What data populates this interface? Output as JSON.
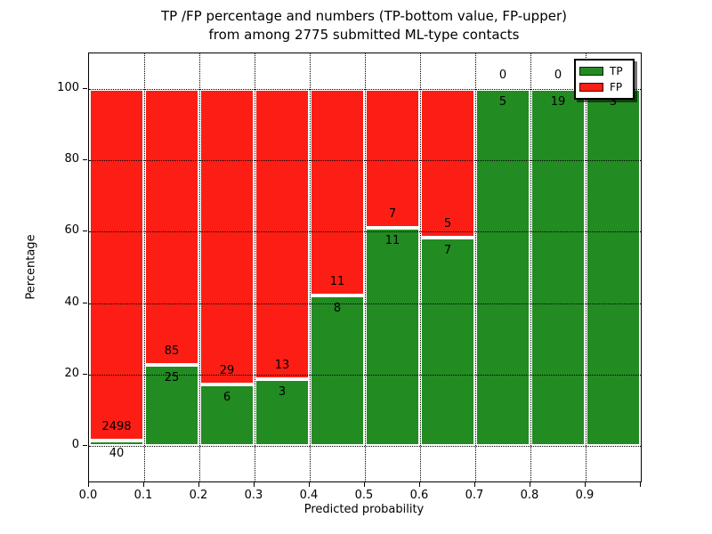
{
  "title": {
    "line1": "TP /FP percentage and numbers (TP-bottom value, FP-upper)",
    "line2": "from among 2775 submitted ML-type contacts"
  },
  "chart_data": {
    "type": "bar",
    "stacked": true,
    "orientation": "vertical",
    "title": "TP /FP percentage and numbers (TP-bottom value, FP-upper) from among 2775 submitted ML-type contacts",
    "xlabel": "Predicted probability",
    "ylabel": "Percentage",
    "total_contacts": 2775,
    "xlim": [
      0.0,
      1.0
    ],
    "ylim": [
      -10,
      110
    ],
    "yticks": [
      0,
      20,
      40,
      60,
      80,
      100
    ],
    "xtick_labels": [
      "0.0",
      "0.1",
      "0.2",
      "0.3",
      "0.4",
      "0.5",
      "0.6",
      "0.7",
      "0.8",
      "0.9"
    ],
    "grid": true,
    "value_label_note": "TP count below green top, FP count above green top",
    "bins": [
      {
        "x0": 0.0,
        "x1": 0.1,
        "tp": 40,
        "fp": 2498
      },
      {
        "x0": 0.1,
        "x1": 0.2,
        "tp": 25,
        "fp": 85
      },
      {
        "x0": 0.2,
        "x1": 0.3,
        "tp": 6,
        "fp": 29
      },
      {
        "x0": 0.3,
        "x1": 0.4,
        "tp": 3,
        "fp": 13
      },
      {
        "x0": 0.4,
        "x1": 0.5,
        "tp": 8,
        "fp": 11
      },
      {
        "x0": 0.5,
        "x1": 0.6,
        "tp": 11,
        "fp": 7
      },
      {
        "x0": 0.6,
        "x1": 0.7,
        "tp": 7,
        "fp": 5
      },
      {
        "x0": 0.7,
        "x1": 0.8,
        "tp": 5,
        "fp": 0
      },
      {
        "x0": 0.8,
        "x1": 0.9,
        "tp": 19,
        "fp": 0
      },
      {
        "x0": 0.9,
        "x1": 1.0,
        "tp": 3,
        "fp": 0
      }
    ],
    "colors": {
      "tp": "#228b22",
      "fp": "#fc1e14"
    },
    "legend": {
      "position": "upper right",
      "entries": [
        {
          "label": "TP",
          "color": "#228b22"
        },
        {
          "label": "FP",
          "color": "#fc1e14"
        }
      ]
    }
  }
}
